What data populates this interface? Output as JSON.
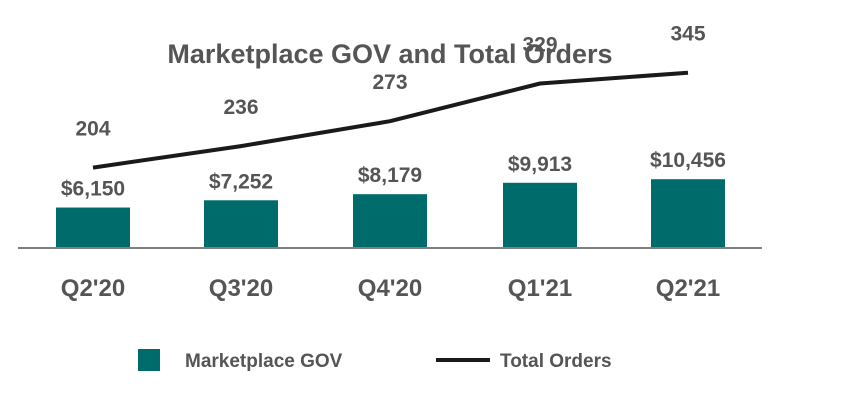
{
  "chart_data": {
    "type": "bar",
    "title": "Marketplace GOV and Total Orders",
    "categories": [
      "Q2'20",
      "Q3'20",
      "Q4'20",
      "Q1'21",
      "Q2'21"
    ],
    "series": [
      {
        "name": "Marketplace GOV",
        "type": "bar",
        "values": [
          6150,
          7252,
          8179,
          9913,
          10456
        ],
        "labels": [
          "$6,150",
          "$7,252",
          "$8,179",
          "$9,913",
          "$10,456"
        ],
        "color": "#006b6b"
      },
      {
        "name": "Total Orders",
        "type": "line",
        "values": [
          204,
          236,
          273,
          329,
          345
        ],
        "labels": [
          "204",
          "236",
          "273",
          "329",
          "345"
        ],
        "color": "#1a1a1a"
      }
    ],
    "legend_position": "bottom",
    "grid": false
  }
}
